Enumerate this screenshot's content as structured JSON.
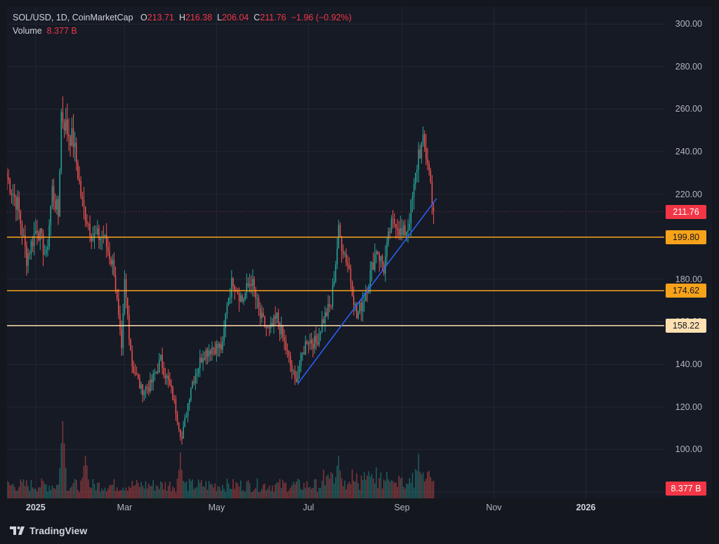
{
  "header": {
    "symbol": "SOL/USD, 1D, CoinMarketCap",
    "o_label": "O",
    "o_value": "213.71",
    "h_label": "H",
    "h_value": "216.38",
    "l_label": "L",
    "l_value": "206.04",
    "c_label": "C",
    "c_value": "211.76",
    "change": "−1.96 (−0.92%)",
    "volume_label": "Volume",
    "volume_value": "8.377 B"
  },
  "branding": {
    "logo_text": "TradingView"
  },
  "colors": {
    "up": "#26a69a",
    "down": "#ef5350",
    "orange_level": "#f7a21b",
    "cream_level": "#ffe0b2",
    "trendline": "#2962ff",
    "price_tag": "#f23645"
  },
  "chart_data": {
    "type": "candlestick",
    "symbol": "SOL/USD",
    "interval": "1D",
    "ylim": [
      77,
      308
    ],
    "y_ticks": [
      "300.00",
      "280.00",
      "260.00",
      "240.00",
      "220.00",
      "200.00",
      "180.00",
      "160.00",
      "140.00",
      "120.00",
      "100.00",
      "80.00"
    ],
    "y_tick_values": [
      300,
      280,
      260,
      240,
      220,
      200,
      180,
      160,
      140,
      120,
      100,
      80
    ],
    "x_range": [
      "2024-12-13",
      "2026-02-22"
    ],
    "x_ticks": [
      {
        "label": "2025",
        "date": "2025-01-01",
        "bold": true
      },
      {
        "label": "Mar",
        "date": "2025-03-01",
        "bold": false
      },
      {
        "label": "May",
        "date": "2025-05-01",
        "bold": false
      },
      {
        "label": "Jul",
        "date": "2025-07-01",
        "bold": false
      },
      {
        "label": "Sep",
        "date": "2025-09-01",
        "bold": false
      },
      {
        "label": "Nov",
        "date": "2025-11-01",
        "bold": false
      },
      {
        "label": "2026",
        "date": "2026-01-01",
        "bold": true
      }
    ],
    "start_date": "2024-12-13",
    "end_date": "2025-09-22",
    "close_anchors": [
      [
        "2024-12-13",
        228
      ],
      [
        "2024-12-20",
        215
      ],
      [
        "2024-12-26",
        190
      ],
      [
        "2025-01-02",
        205
      ],
      [
        "2025-01-08",
        190
      ],
      [
        "2025-01-12",
        222
      ],
      [
        "2025-01-16",
        210
      ],
      [
        "2025-01-18",
        258
      ],
      [
        "2025-01-22",
        250
      ],
      [
        "2025-01-26",
        245
      ],
      [
        "2025-02-01",
        215
      ],
      [
        "2025-02-08",
        200
      ],
      [
        "2025-02-15",
        200
      ],
      [
        "2025-02-22",
        185
      ],
      [
        "2025-02-27",
        145
      ],
      [
        "2025-03-01",
        178
      ],
      [
        "2025-03-06",
        140
      ],
      [
        "2025-03-12",
        128
      ],
      [
        "2025-03-18",
        130
      ],
      [
        "2025-03-25",
        142
      ],
      [
        "2025-04-02",
        125
      ],
      [
        "2025-04-08",
        105
      ],
      [
        "2025-04-14",
        130
      ],
      [
        "2025-04-22",
        145
      ],
      [
        "2025-04-28",
        148
      ],
      [
        "2025-05-05",
        148
      ],
      [
        "2025-05-08",
        170
      ],
      [
        "2025-05-12",
        180
      ],
      [
        "2025-05-18",
        170
      ],
      [
        "2025-05-24",
        180
      ],
      [
        "2025-05-30",
        162
      ],
      [
        "2025-06-05",
        155
      ],
      [
        "2025-06-10",
        162
      ],
      [
        "2025-06-15",
        150
      ],
      [
        "2025-06-22",
        132
      ],
      [
        "2025-06-30",
        152
      ],
      [
        "2025-07-06",
        150
      ],
      [
        "2025-07-10",
        160
      ],
      [
        "2025-07-16",
        168
      ],
      [
        "2025-07-21",
        202
      ],
      [
        "2025-07-28",
        185
      ],
      [
        "2025-08-02",
        162
      ],
      [
        "2025-08-07",
        172
      ],
      [
        "2025-08-12",
        185
      ],
      [
        "2025-08-15",
        195
      ],
      [
        "2025-08-20",
        185
      ],
      [
        "2025-08-24",
        203
      ],
      [
        "2025-08-28",
        208
      ],
      [
        "2025-09-01",
        200
      ],
      [
        "2025-09-05",
        205
      ],
      [
        "2025-09-09",
        222
      ],
      [
        "2025-09-12",
        240
      ],
      [
        "2025-09-15",
        243
      ],
      [
        "2025-09-18",
        236
      ],
      [
        "2025-09-20",
        225
      ],
      [
        "2025-09-22",
        211.76
      ]
    ],
    "last_candle": {
      "open": 213.71,
      "high": 216.38,
      "low": 206.04,
      "close": 211.76
    },
    "volume": {
      "last_value": "8.377 B",
      "peaks": [
        [
          "2025-01-19",
          1.0
        ],
        [
          "2025-02-03",
          0.55
        ],
        [
          "2025-04-07",
          0.55
        ],
        [
          "2025-07-21",
          0.48
        ],
        [
          "2025-09-12",
          0.45
        ]
      ]
    },
    "horizontal_levels": [
      {
        "value": 199.8,
        "label": "199.80",
        "color": "#f7a21b"
      },
      {
        "value": 174.62,
        "label": "174.62",
        "color": "#f7a21b"
      },
      {
        "value": 158.22,
        "label": "158.22",
        "color": "#ffe0b2"
      }
    ],
    "last_price": {
      "value": 211.76,
      "label": "211.76",
      "color": "#f23645"
    },
    "trendline": {
      "from": [
        "2025-06-24",
        131
      ],
      "to": [
        "2025-09-24",
        218
      ],
      "color": "#2962ff"
    },
    "grid": true
  }
}
